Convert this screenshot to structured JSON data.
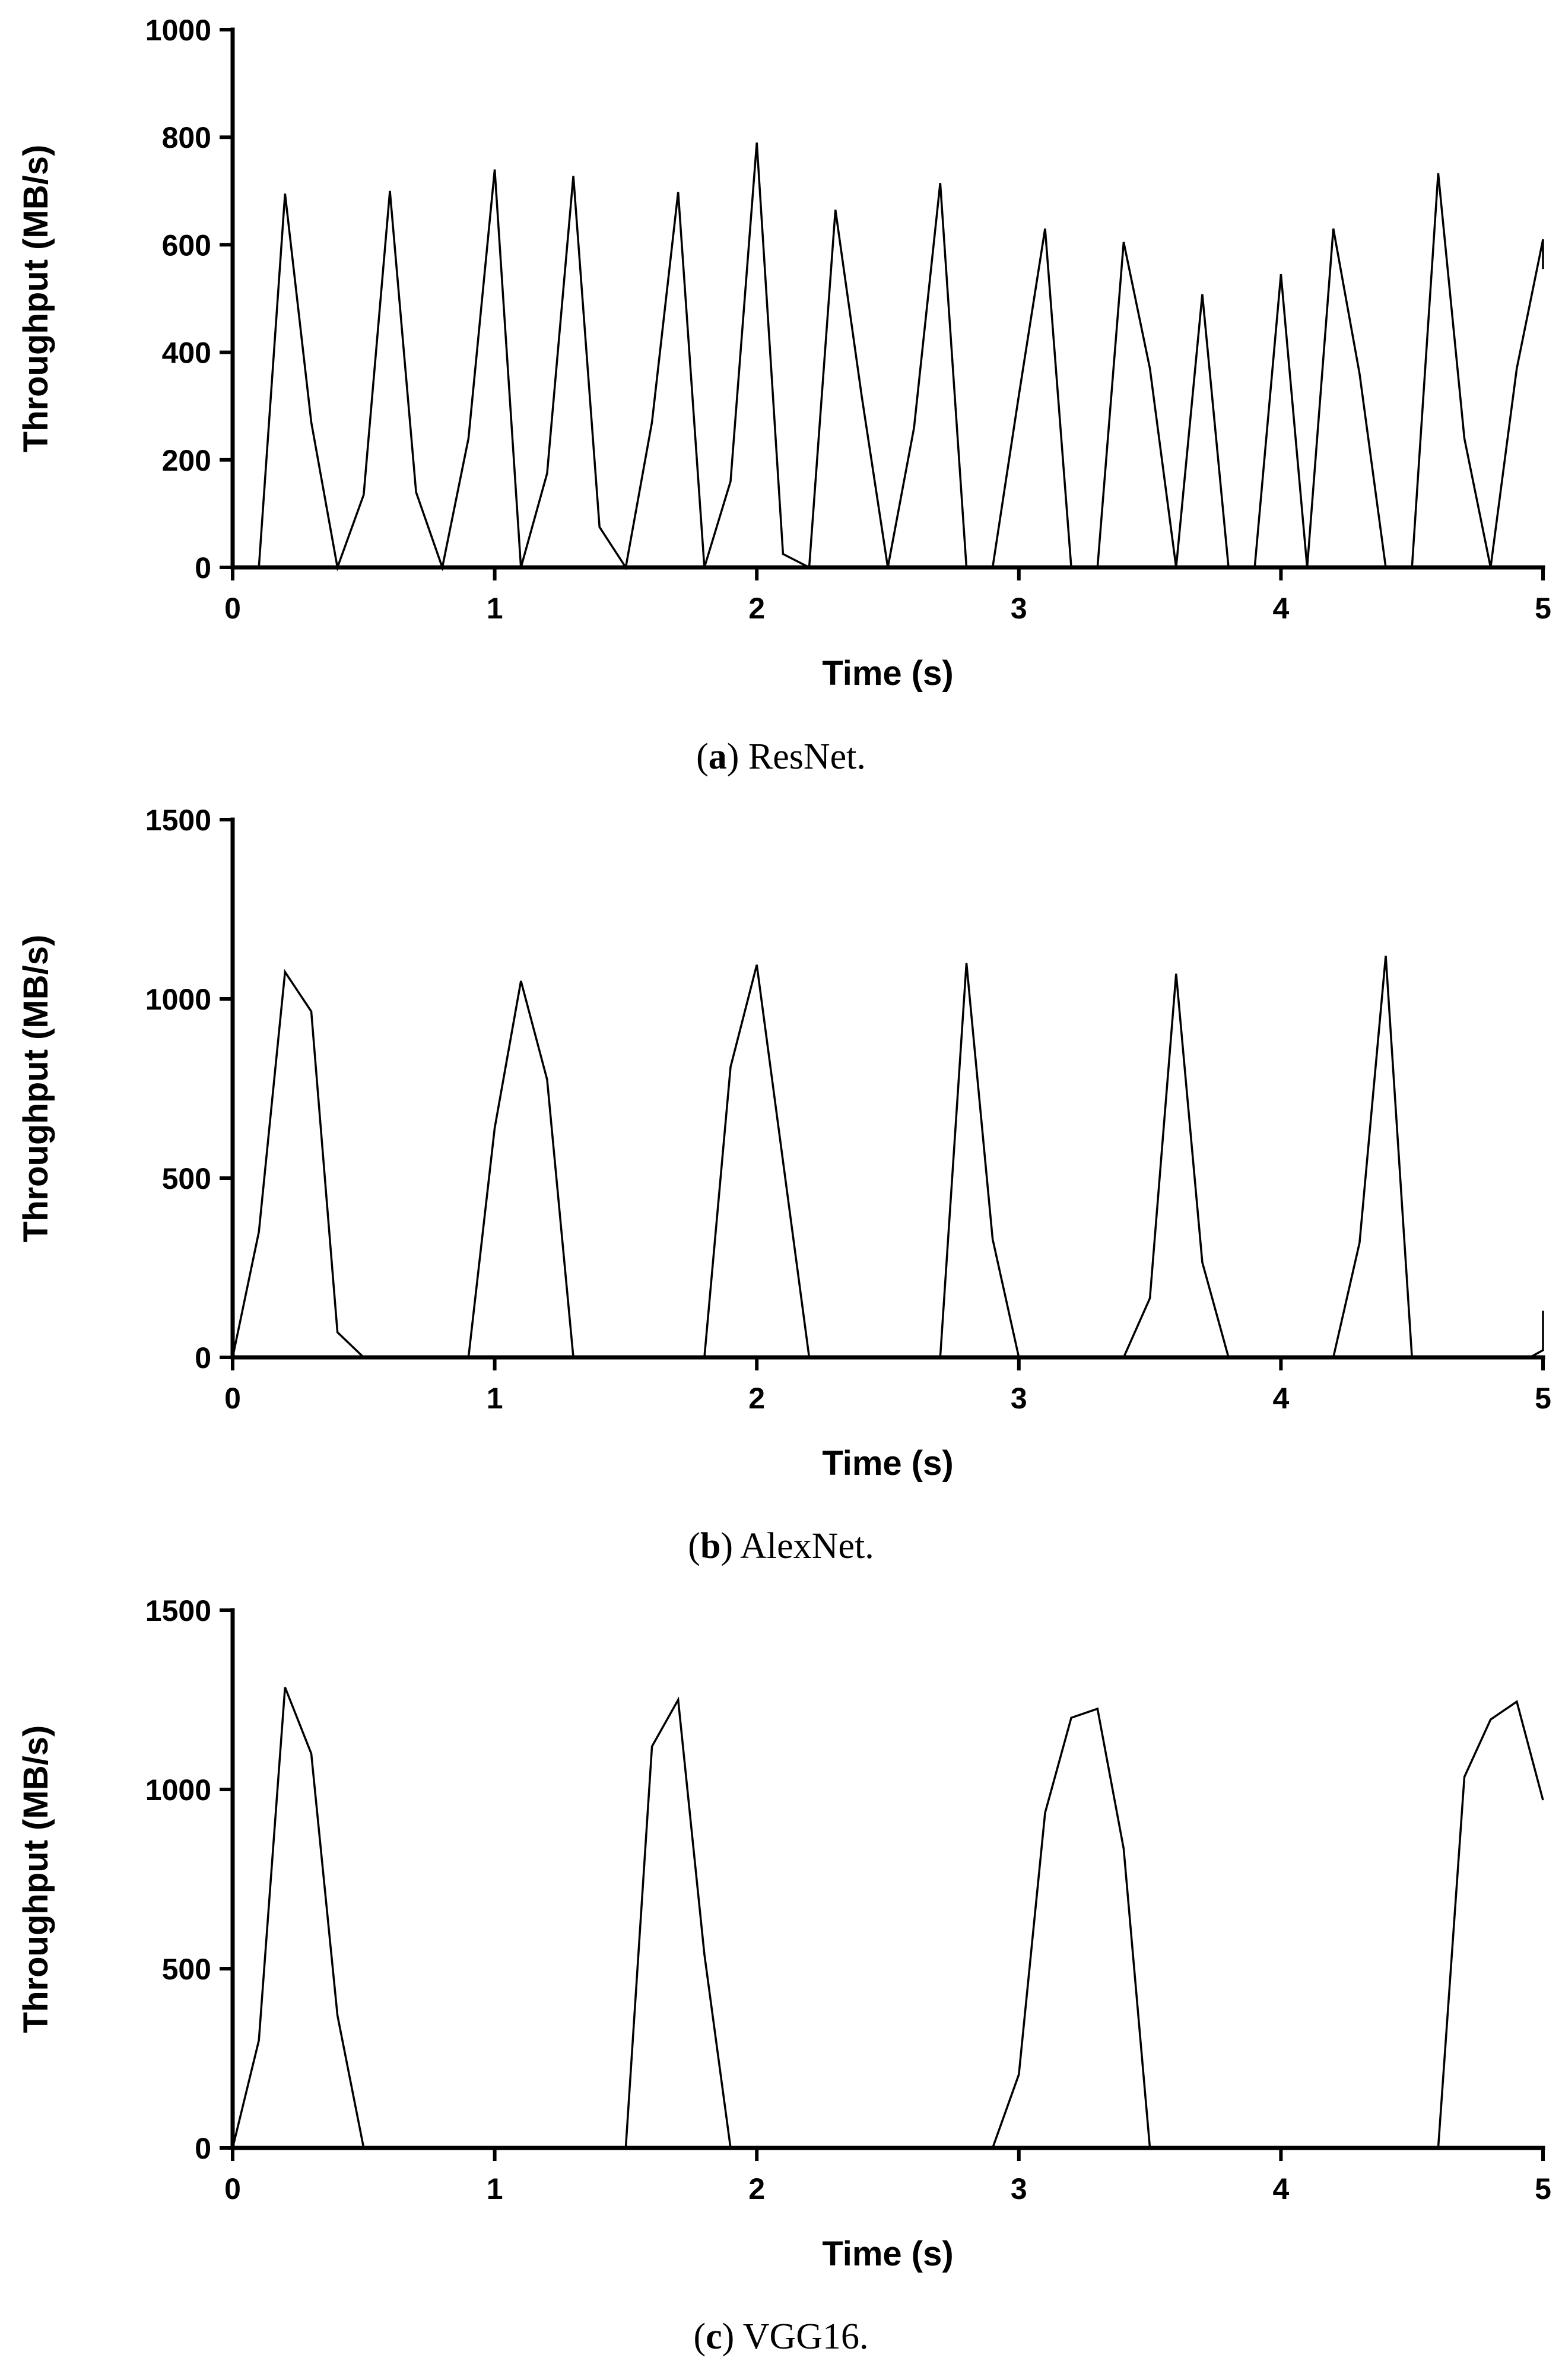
{
  "chart_data": [
    {
      "type": "line",
      "title": "",
      "caption_letter": "a",
      "caption_text": "ResNet.",
      "xlabel": "Time (s)",
      "ylabel": "Throughput (MB/s)",
      "xlim": [
        0,
        5
      ],
      "ylim": [
        0,
        1000
      ],
      "xticks": [
        0,
        1,
        2,
        3,
        4,
        5
      ],
      "yticks": [
        0,
        200,
        400,
        600,
        800,
        1000
      ],
      "grid": false,
      "series": [
        {
          "name": "ResNet",
          "x": [
            0.1,
            0.2,
            0.3,
            0.4,
            0.5,
            0.6,
            0.7,
            0.8,
            0.9,
            1.0,
            1.1,
            1.2,
            1.3,
            1.4,
            1.5,
            1.6,
            1.7,
            1.8,
            1.9,
            2.0,
            2.1,
            2.2,
            2.3,
            2.4,
            2.5,
            2.6,
            2.7,
            2.8,
            2.9,
            3.0,
            3.1,
            3.2,
            3.3,
            3.4,
            3.5,
            3.6,
            3.7,
            3.8,
            3.9,
            4.0,
            4.1,
            4.2,
            4.3,
            4.4,
            4.5,
            4.6,
            4.7,
            4.8,
            4.9,
            5.0,
            5.0
          ],
          "values": [
            0,
            695,
            270,
            0,
            135,
            700,
            140,
            0,
            240,
            740,
            0,
            175,
            728,
            75,
            0,
            270,
            698,
            0,
            160,
            790,
            25,
            0,
            665,
            320,
            0,
            260,
            715,
            0,
            0,
            320,
            630,
            0,
            0,
            605,
            370,
            0,
            508,
            0,
            0,
            545,
            0,
            630,
            360,
            0,
            0,
            733,
            240,
            0,
            370,
            610,
            555
          ]
        }
      ]
    },
    {
      "type": "line",
      "title": "",
      "caption_letter": "b",
      "caption_text": "AlexNet.",
      "xlabel": "Time (s)",
      "ylabel": "Throughput (MB/s)",
      "xlim": [
        0,
        5
      ],
      "ylim": [
        0,
        1500
      ],
      "xticks": [
        0,
        1,
        2,
        3,
        4,
        5
      ],
      "yticks": [
        0,
        500,
        1000,
        1500
      ],
      "grid": false,
      "series": [
        {
          "name": "AlexNet",
          "x": [
            0.0,
            0.1,
            0.2,
            0.3,
            0.4,
            0.5,
            0.9,
            1.0,
            1.1,
            1.2,
            1.3,
            1.8,
            1.9,
            2.0,
            2.2,
            2.7,
            2.8,
            2.9,
            3.0,
            3.4,
            3.5,
            3.6,
            3.7,
            3.8,
            4.2,
            4.3,
            4.4,
            4.5,
            4.95,
            5.0,
            5.0
          ],
          "values": [
            0,
            350,
            1075,
            965,
            70,
            0,
            0,
            640,
            1050,
            775,
            0,
            0,
            810,
            1095,
            0,
            0,
            1100,
            330,
            0,
            0,
            165,
            1070,
            265,
            0,
            0,
            320,
            1120,
            0,
            0,
            20,
            130
          ]
        }
      ]
    },
    {
      "type": "line",
      "title": "",
      "caption_letter": "c",
      "caption_text": "VGG16.",
      "xlabel": "Time (s)",
      "ylabel": "Throughput (MB/s)",
      "xlim": [
        0,
        5
      ],
      "ylim": [
        0,
        1500
      ],
      "xticks": [
        0,
        1,
        2,
        3,
        4,
        5
      ],
      "yticks": [
        0,
        500,
        1000,
        1500
      ],
      "grid": false,
      "series": [
        {
          "name": "VGG16",
          "x": [
            0.0,
            0.1,
            0.2,
            0.3,
            0.4,
            0.5,
            1.5,
            1.6,
            1.7,
            1.8,
            1.9,
            2.9,
            3.0,
            3.1,
            3.2,
            3.3,
            3.4,
            3.5,
            4.6,
            4.7,
            4.8,
            4.9,
            5.0
          ],
          "values": [
            0,
            300,
            1285,
            1100,
            370,
            0,
            0,
            1120,
            1250,
            540,
            0,
            0,
            205,
            935,
            1200,
            1225,
            835,
            0,
            0,
            1035,
            1195,
            1245,
            970
          ]
        }
      ]
    }
  ]
}
